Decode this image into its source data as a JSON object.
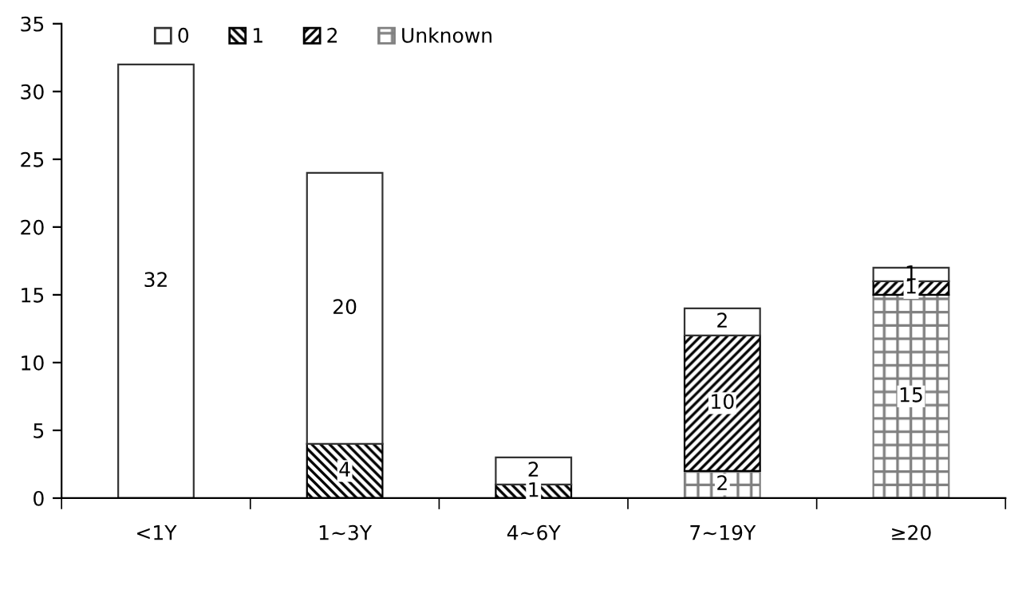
{
  "chart_data": {
    "type": "bar",
    "stacked": true,
    "categories": [
      "<1Y",
      "1~3Y",
      "4~6Y",
      "7~19Y",
      "≥20"
    ],
    "series": [
      {
        "name": "Unknown",
        "color": "#808080",
        "values": [
          null,
          null,
          null,
          2,
          15
        ]
      },
      {
        "name": "2",
        "color": "#000000",
        "values": [
          null,
          null,
          null,
          10,
          1
        ]
      },
      {
        "name": "1",
        "color": "#000000",
        "values": [
          null,
          4,
          1,
          null,
          null
        ]
      },
      {
        "name": "0",
        "color": "#ffffff",
        "values": [
          32,
          20,
          2,
          2,
          1
        ]
      }
    ],
    "ylim": [
      0,
      35
    ],
    "yticks": [
      0,
      5,
      10,
      15,
      20,
      25,
      30,
      35
    ],
    "data_labels": true,
    "grid": false,
    "legend": "top left"
  }
}
